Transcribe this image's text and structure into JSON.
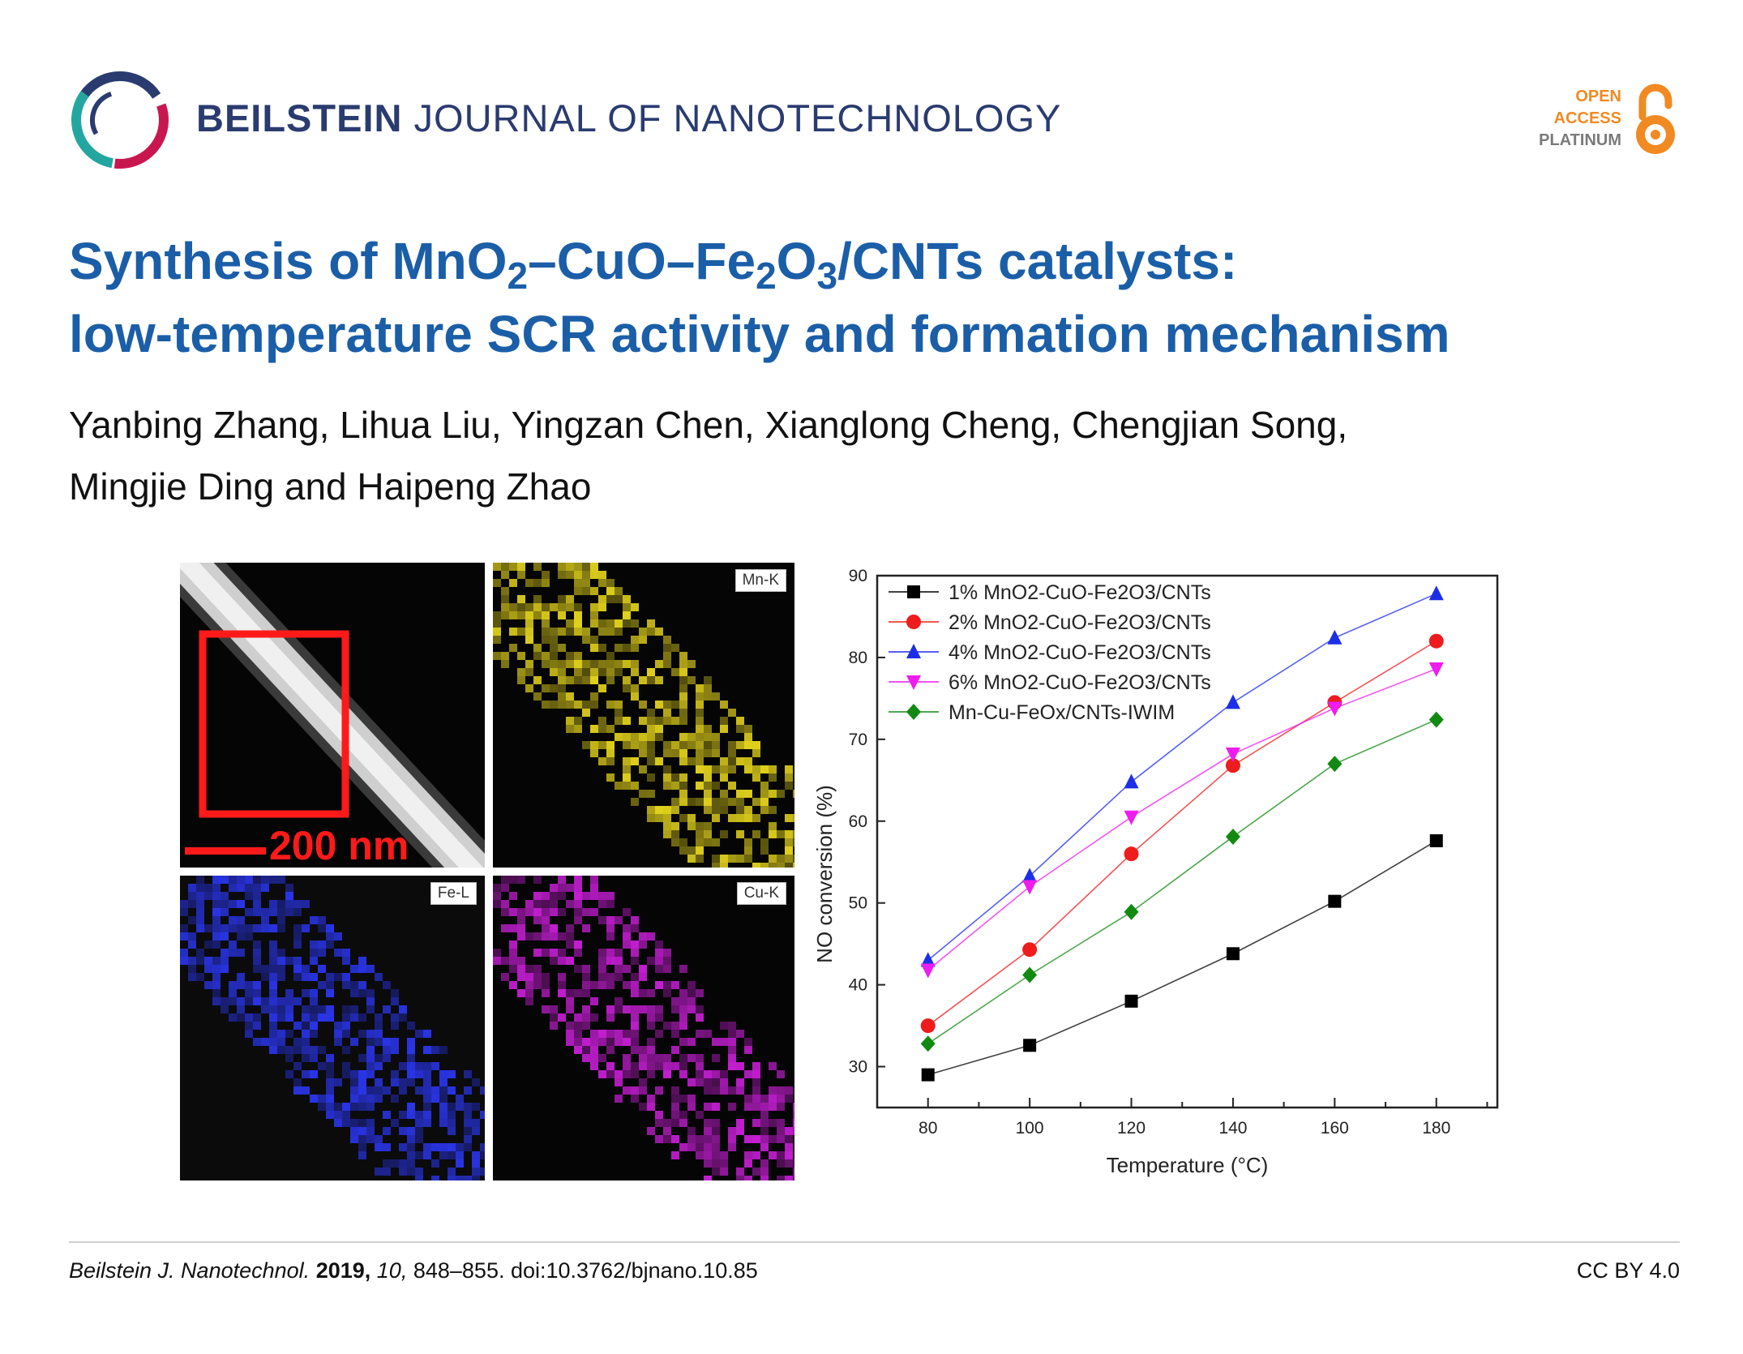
{
  "header": {
    "journal_bold": "BEILSTEIN",
    "journal_rest": "JOURNAL OF NANOTECHNOLOGY",
    "oa_line1": "OPEN",
    "oa_line2": "ACCESS",
    "oa_line3": "PLATINUM",
    "logo_icon": "beilstein-ring-logo",
    "oa_icon": "open-lock-icon"
  },
  "article": {
    "title_parts": [
      "Synthesis of MnO",
      "2",
      "–CuO–Fe",
      "2",
      "O",
      "3",
      "/CNTs catalysts:"
    ],
    "title_line2": "low-temperature SCR activity and formation mechanism",
    "authors_line1": "Yanbing Zhang, Lihua Liu, Yingzan Chen, Xianglong Cheng, Chengjian Song,",
    "authors_line2": "Mingjie Ding and Haipeng Zhao"
  },
  "figure": {
    "scale_bar": "200 nm",
    "panels": {
      "mn": "Mn-K",
      "fe": "Fe-L",
      "cu": "Cu-K"
    },
    "map_colors": {
      "mn": "#e2d21c",
      "fe": "#2a35e8",
      "cu": "#c21ed0"
    }
  },
  "chart_data": {
    "type": "line",
    "xlabel": "Temperature (°C)",
    "ylabel": "NO conversion (%)",
    "x": [
      80,
      100,
      120,
      140,
      160,
      180
    ],
    "xlim": [
      70,
      192
    ],
    "ylim": [
      25,
      90
    ],
    "xticks": [
      80,
      100,
      120,
      140,
      160,
      180
    ],
    "yticks": [
      30,
      40,
      50,
      60,
      70,
      80,
      90
    ],
    "legend_position": "top-left",
    "series": [
      {
        "name": "1% MnO2-CuO-Fe2O3/CNTs",
        "color": "#000000",
        "marker": "square",
        "values": [
          29.0,
          32.6,
          38.0,
          43.8,
          50.2,
          57.6
        ]
      },
      {
        "name": "2% MnO2-CuO-Fe2O3/CNTs",
        "color": "#ee1c1c",
        "marker": "circle",
        "values": [
          35.0,
          44.3,
          56.0,
          66.8,
          74.5,
          82.0
        ]
      },
      {
        "name": "4% MnO2-CuO-Fe2O3/CNTs",
        "color": "#1c2ee8",
        "marker": "triangle-up",
        "values": [
          43.0,
          53.3,
          64.8,
          74.5,
          82.4,
          87.8
        ]
      },
      {
        "name": "6% MnO2-CuO-Fe2O3/CNTs",
        "color": "#ee1cee",
        "marker": "triangle-down",
        "values": [
          41.8,
          52.0,
          60.5,
          68.2,
          73.8,
          78.6
        ]
      },
      {
        "name": "Mn-Cu-FeOx/CNTs-IWIM",
        "color": "#128a12",
        "marker": "diamond",
        "values": [
          32.8,
          41.2,
          48.9,
          58.1,
          67.0,
          72.4
        ]
      }
    ]
  },
  "footer": {
    "journal_abbrev": "Beilstein J. Nanotechnol.",
    "year": "2019,",
    "volume": "10,",
    "pages_doi": "848–855. doi:10.3762/bjnano.10.85",
    "license": "CC BY 4.0"
  }
}
